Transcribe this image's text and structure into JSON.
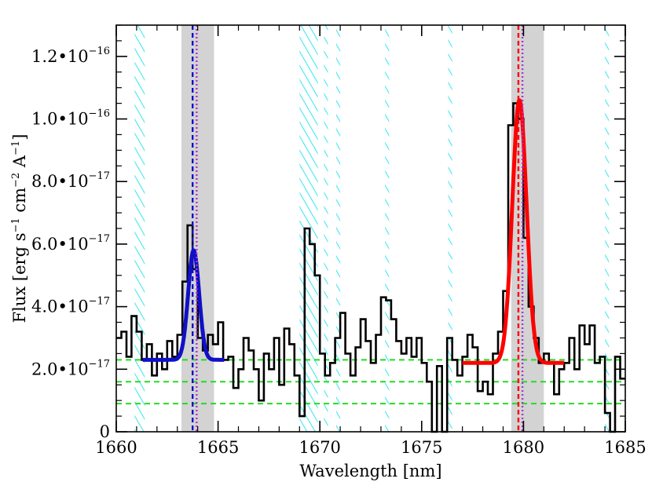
{
  "chart_data": {
    "type": "line",
    "xlabel": "Wavelength [nm]",
    "ylabel": {
      "prefix": "Flux [erg s",
      "sup1": "−1",
      "mid1": " cm",
      "sup2": "−2",
      "mid2": " A",
      "sup3": "−1",
      "suffix": "]"
    },
    "xlim": [
      1660,
      1685
    ],
    "ylim": [
      0,
      1.3e-16
    ],
    "x_ticks": [
      {
        "value": 1660,
        "label": "1660"
      },
      {
        "value": 1665,
        "label": "1665"
      },
      {
        "value": 1670,
        "label": "1670"
      },
      {
        "value": 1675,
        "label": "1675"
      },
      {
        "value": 1680,
        "label": "1680"
      },
      {
        "value": 1685,
        "label": "1685"
      }
    ],
    "y_ticks": [
      {
        "value": 0,
        "mant": "0",
        "exp": ""
      },
      {
        "value": 2e-17,
        "mant": "2.0•10",
        "exp": "−17"
      },
      {
        "value": 4e-17,
        "mant": "4.0•10",
        "exp": "−17"
      },
      {
        "value": 6e-17,
        "mant": "6.0•10",
        "exp": "−17"
      },
      {
        "value": 8e-17,
        "mant": "8.0•10",
        "exp": "−17"
      },
      {
        "value": 1e-16,
        "mant": "1.0•10",
        "exp": "−16"
      },
      {
        "value": 1.2e-16,
        "mant": "1.2•10",
        "exp": "−16"
      }
    ],
    "spectrum": {
      "color": "#000000",
      "x": [
        1660.0,
        1660.25,
        1660.5,
        1660.75,
        1661.0,
        1661.25,
        1661.5,
        1661.75,
        1662.0,
        1662.25,
        1662.5,
        1662.75,
        1663.0,
        1663.25,
        1663.5,
        1663.75,
        1664.0,
        1664.25,
        1664.5,
        1664.75,
        1665.0,
        1665.25,
        1665.5,
        1665.75,
        1666.0,
        1666.25,
        1666.5,
        1666.75,
        1667.0,
        1667.25,
        1667.5,
        1667.75,
        1668.0,
        1668.25,
        1668.5,
        1668.75,
        1669.0,
        1669.25,
        1669.5,
        1669.75,
        1670.0,
        1670.25,
        1670.5,
        1670.75,
        1671.0,
        1671.25,
        1671.5,
        1671.75,
        1672.0,
        1672.25,
        1672.5,
        1672.75,
        1673.0,
        1673.25,
        1673.5,
        1673.75,
        1674.0,
        1674.25,
        1674.5,
        1674.75,
        1675.0,
        1675.25,
        1675.5,
        1675.75,
        1676.0,
        1676.25,
        1676.5,
        1676.75,
        1677.0,
        1677.25,
        1677.5,
        1677.75,
        1678.0,
        1678.25,
        1678.5,
        1678.75,
        1679.0,
        1679.25,
        1679.5,
        1679.75,
        1680.0,
        1680.25,
        1680.5,
        1680.75,
        1681.0,
        1681.25,
        1681.5,
        1681.75,
        1682.0,
        1682.25,
        1682.5,
        1682.75,
        1683.0,
        1683.25,
        1683.5,
        1683.75,
        1684.0,
        1684.25,
        1684.5,
        1684.75
      ],
      "y": [
        3e-17,
        3.2e-17,
        2.4e-17,
        3.7e-17,
        3.2e-17,
        2.3e-17,
        2.8e-17,
        1.8e-17,
        2.5e-17,
        2e-17,
        2.9e-17,
        2.4e-17,
        3.1e-17,
        4.8e-17,
        6.6e-17,
        5.2e-17,
        3e-17,
        2.6e-17,
        3.1e-17,
        2.8e-17,
        3.5e-17,
        2.3e-17,
        2.4e-17,
        1.4e-17,
        2e-17,
        3e-17,
        2.6e-17,
        2e-17,
        1e-17,
        2.5e-17,
        2e-17,
        3e-17,
        1.5e-17,
        3.3e-17,
        2.8e-17,
        1.8e-17,
        5e-18,
        6.5e-17,
        6e-17,
        5e-17,
        2.5e-17,
        1.8e-17,
        2.2e-17,
        3e-17,
        3.8e-17,
        2.5e-17,
        1.8e-17,
        2.7e-17,
        3.6e-17,
        2.9e-17,
        2.2e-17,
        3.1e-17,
        4.3e-17,
        4.2e-17,
        3.6e-17,
        2.9e-17,
        2.5e-17,
        3e-17,
        2.4e-17,
        3e-17,
        2.2e-17,
        1.6e-17,
        0.0,
        2.1e-17,
        0.0,
        3e-17,
        2.3e-17,
        1.8e-17,
        2.4e-17,
        3.1e-17,
        2.7e-17,
        1.3e-17,
        1.6e-17,
        1.2e-17,
        2.5e-17,
        3.2e-17,
        4.5e-17,
        9.8e-17,
        1.05e-16,
        1e-16,
        6.2e-17,
        4e-17,
        3e-17,
        2.2e-17,
        2.5e-17,
        2.2e-17,
        1.2e-17,
        2e-17,
        2.2e-17,
        3e-17,
        2e-17,
        3.4e-17,
        2.8e-17,
        3.4e-17,
        2.2e-17,
        2.4e-17,
        6e-18,
        0.0,
        2.4e-17,
        1.7e-17
      ]
    },
    "fits": [
      {
        "color": "#1010c8",
        "center": 1663.8,
        "sigma": 0.27,
        "amplitude": 3.5e-17,
        "continuum": 2.3e-17,
        "range": [
          1661.3,
          1665.3
        ]
      },
      {
        "color": "#ff0000",
        "center": 1679.8,
        "sigma": 0.35,
        "amplitude": 8.4e-17,
        "continuum": 2.2e-17,
        "range": [
          1677.0,
          1682.0
        ]
      }
    ],
    "gray_bands": [
      [
        1663.2,
        1664.8
      ],
      [
        1679.4,
        1681.0
      ]
    ],
    "cyan_hatched_bands": [
      [
        1660.9,
        1661.4
      ],
      [
        1669.0,
        1669.9
      ],
      [
        1670.2,
        1670.4
      ],
      [
        1670.8,
        1671.0
      ],
      [
        1673.2,
        1673.4
      ],
      [
        1676.3,
        1676.5
      ],
      [
        1684.0,
        1684.2
      ]
    ],
    "vertical_lines": [
      {
        "x": 1663.75,
        "color": "#1010c8",
        "style": "dashed"
      },
      {
        "x": 1663.95,
        "color": "#b030d0",
        "style": "dotted"
      },
      {
        "x": 1679.75,
        "color": "#ff0000",
        "style": "dashed"
      },
      {
        "x": 1679.95,
        "color": "#b030d0",
        "style": "dotted"
      }
    ],
    "horizontal_lines": [
      {
        "y": 2.3e-17,
        "color": "#22dd22",
        "style": "dashed"
      },
      {
        "y": 1.6e-17,
        "color": "#22dd22",
        "style": "dashed"
      },
      {
        "y": 9e-18,
        "color": "#22dd22",
        "style": "dashed"
      }
    ],
    "hatch_color": "#40e8f0",
    "gray_color": "#d3d3d3",
    "grid": false,
    "legend": "none"
  }
}
